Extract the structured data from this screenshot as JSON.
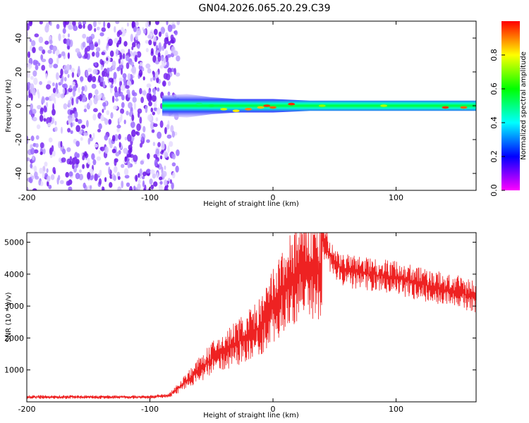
{
  "title": "GN04.2026.065.20.29.C39",
  "chart_data": [
    {
      "type": "heatmap",
      "xlabel": "Height of straight line (km)",
      "ylabel": "Frequency (Hz)",
      "xlim": [
        -200,
        165
      ],
      "ylim": [
        -50,
        50
      ],
      "xticks": [
        -200,
        -100,
        0,
        100
      ],
      "yticks": [
        -40,
        -20,
        0,
        20,
        40
      ],
      "colorbar": {
        "label": "Normalized spectral amplitude",
        "range": [
          0,
          1
        ],
        "ticks": [
          0.0,
          0.2,
          0.4,
          0.6,
          0.8
        ],
        "tick_labels": [
          "0.0",
          "0.2",
          "0.4",
          "0.6",
          "0.8"
        ],
        "colormap": [
          "#ff00ff",
          "#0000ff",
          "#00ffff",
          "#00ff00",
          "#ffff00",
          "#ff0000"
        ]
      },
      "features": [
        {
          "name": "noise region",
          "x_range": [
            -200,
            -85
          ],
          "y_range": [
            -50,
            50
          ],
          "amplitude": 0.1
        },
        {
          "name": "signal band",
          "x_range": [
            -90,
            165
          ],
          "center_frequency_hz": 0,
          "amplitude_peak": 0.95
        }
      ]
    },
    {
      "type": "line",
      "xlabel": "Height of straight line (km)",
      "ylabel": "SNR (10 * v/v)",
      "xlim": [
        -200,
        165
      ],
      "ylim": [
        0,
        5300
      ],
      "xticks": [
        -200,
        -100,
        0,
        100
      ],
      "yticks": [
        1000,
        2000,
        3000,
        4000,
        5000
      ],
      "color": "#ff0000",
      "envelope": {
        "x": [
          -200,
          -150,
          -100,
          -85,
          -75,
          -60,
          -50,
          -40,
          -30,
          -20,
          -10,
          0,
          10,
          20,
          30,
          40,
          50,
          60,
          80,
          100,
          120,
          140,
          165
        ],
        "y": [
          150,
          150,
          150,
          200,
          600,
          1200,
          1600,
          1900,
          2200,
          2500,
          2800,
          3600,
          4300,
          4900,
          5050,
          5100,
          4300,
          4100,
          4000,
          3900,
          3700,
          3500,
          3300
        ]
      }
    }
  ]
}
